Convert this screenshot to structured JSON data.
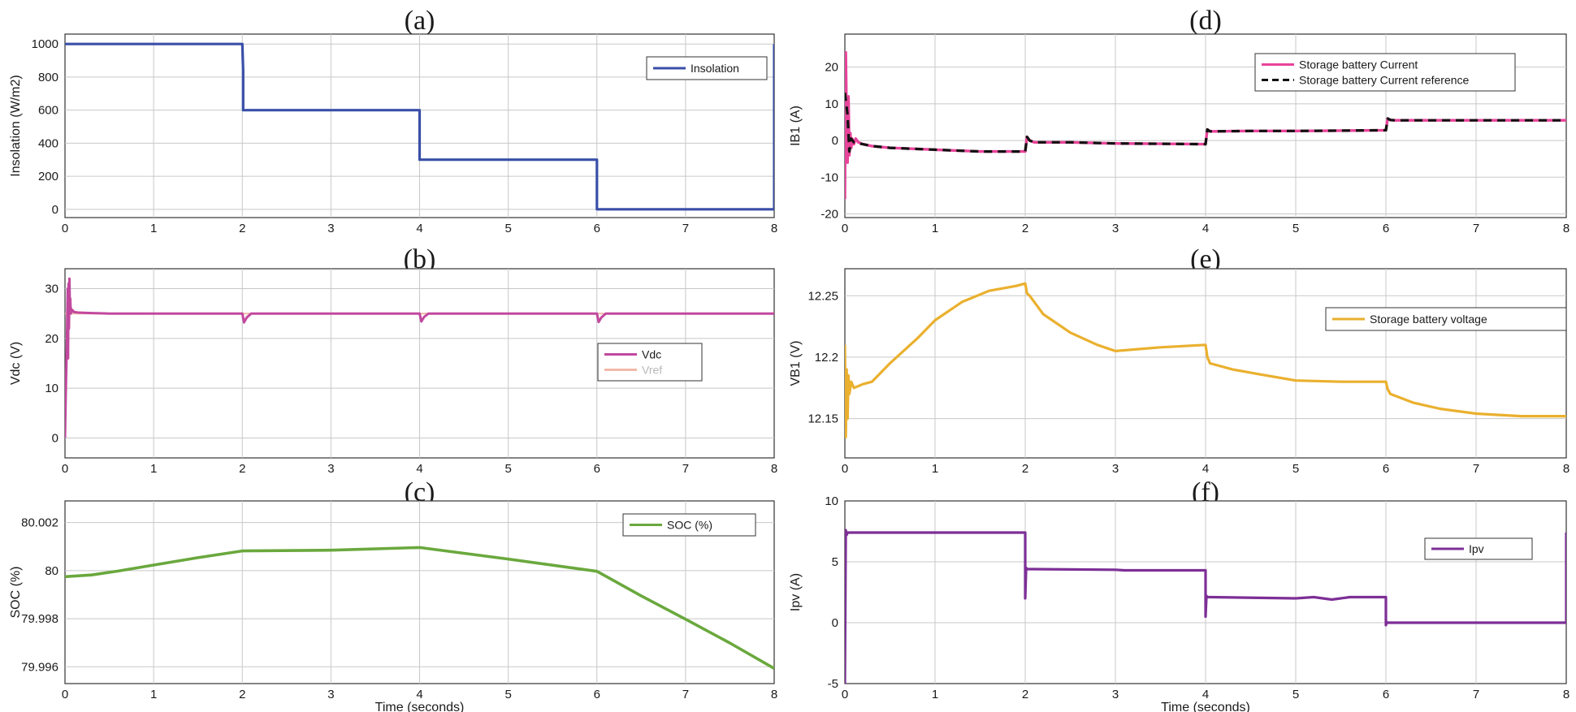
{
  "chart_data": [
    {
      "id": "a",
      "type": "line",
      "panel_label": "(a)",
      "xlabel": "",
      "ylabel": "Insolation (W/m2)",
      "xlim": [
        0,
        8
      ],
      "ylim": [
        -50,
        1060
      ],
      "xticks": [
        0,
        1,
        2,
        3,
        4,
        5,
        6,
        7,
        8
      ],
      "yticks": [
        0,
        200,
        400,
        600,
        800,
        1000
      ],
      "legend": {
        "position": "top-right"
      },
      "series": [
        {
          "name": "Insolation",
          "color": "#3a4fa8",
          "width": 3.2,
          "dash": "",
          "x": [
            0,
            2,
            2.01,
            2.01,
            4,
            4,
            6,
            6,
            8,
            8
          ],
          "y": [
            1000,
            1000,
            840,
            600,
            600,
            300,
            300,
            0,
            0,
            1000
          ]
        }
      ]
    },
    {
      "id": "b",
      "type": "line",
      "panel_label": "(b)",
      "xlabel": "",
      "ylabel": "Vdc (V)",
      "xlim": [
        0,
        8
      ],
      "ylim": [
        -4,
        34
      ],
      "xticks": [
        0,
        1,
        2,
        3,
        4,
        5,
        6,
        7,
        8
      ],
      "yticks": [
        0,
        10,
        20,
        30
      ],
      "legend": {
        "position": "lower-right"
      },
      "series": [
        {
          "name": "Vref",
          "color": "#f1b9a8",
          "width": 2,
          "dash": "",
          "x": [
            0,
            8
          ],
          "y": [
            25,
            25
          ]
        },
        {
          "name": "Vdc",
          "color": "#c2489e",
          "width": 3,
          "x": [
            0,
            0.01,
            0.02,
            0.03,
            0.035,
            0.04,
            0.045,
            0.05,
            0.055,
            0.06,
            0.065,
            0.07,
            0.08,
            0.09,
            0.1,
            0.15,
            0.3,
            0.5,
            2.0,
            2.02,
            2.05,
            2.1,
            2.2,
            4.0,
            4.02,
            4.05,
            4.1,
            4.2,
            6.0,
            6.02,
            6.05,
            6.1,
            6.2,
            8
          ],
          "y": [
            0,
            10,
            18,
            30,
            16,
            31,
            22,
            32,
            26,
            28,
            25,
            26,
            25.4,
            25.6,
            25.3,
            25.2,
            25.1,
            25,
            25,
            23.2,
            24.2,
            25,
            25,
            25,
            23.4,
            24.3,
            25,
            25,
            25,
            23.3,
            24.2,
            25,
            25,
            25
          ]
        }
      ]
    },
    {
      "id": "c",
      "type": "line",
      "panel_label": "(c)",
      "xlabel": "Time (seconds)",
      "ylabel": "SOC (%)",
      "xlim": [
        0,
        8
      ],
      "ylim": [
        79.9953,
        80.0029
      ],
      "xticks": [
        0,
        1,
        2,
        3,
        4,
        5,
        6,
        7,
        8
      ],
      "yticks": [
        79.996,
        79.998,
        80,
        80.002
      ],
      "legend": {
        "position": "top-right"
      },
      "series": [
        {
          "name": "SOC (%)",
          "color": "#6aa83d",
          "width": 3.6,
          "x": [
            0,
            0.3,
            0.6,
            1,
            1.5,
            2,
            3,
            4,
            5,
            6,
            6.5,
            7,
            7.5,
            8
          ],
          "y": [
            79.99975,
            79.99982,
            79.99998,
            80.00023,
            80.00054,
            80.00082,
            80.00085,
            80.00096,
            80.00048,
            79.99997,
            79.99895,
            79.99798,
            79.99699,
            79.99593
          ]
        }
      ]
    },
    {
      "id": "d",
      "type": "line",
      "panel_label": "(d)",
      "xlabel": "",
      "ylabel": "IB1 (A)",
      "xlim": [
        0,
        8
      ],
      "ylim": [
        -21,
        29
      ],
      "xticks": [
        0,
        1,
        2,
        3,
        4,
        5,
        6,
        7,
        8
      ],
      "yticks": [
        -20,
        -10,
        0,
        10,
        20
      ],
      "legend": {
        "position": "top-right"
      },
      "series": [
        {
          "name": "Storage battery Current",
          "color": "#e8449a",
          "width": 3.4,
          "dash": "",
          "x": [
            0,
            0.01,
            0.02,
            0.03,
            0.04,
            0.05,
            0.06,
            0.07,
            0.08,
            0.1,
            0.12,
            0.15,
            0.2,
            0.3,
            0.5,
            1.0,
            1.5,
            2.0,
            2.02,
            2.05,
            2.1,
            2.5,
            3.0,
            3.5,
            4.0,
            4.02,
            4.05,
            4.1,
            4.5,
            5.0,
            5.5,
            6.0,
            6.02,
            6.05,
            6.1,
            6.5,
            7.0,
            7.5,
            8
          ],
          "y": [
            -16,
            24,
            5,
            -6,
            12,
            -4,
            2,
            -2,
            0.5,
            -1,
            0.5,
            -0.5,
            -1,
            -1.5,
            -2,
            -2.5,
            -3,
            -3,
            1,
            0,
            -0.5,
            -0.5,
            -0.8,
            -0.9,
            -1,
            3,
            2.5,
            2.5,
            2.6,
            2.6,
            2.7,
            2.8,
            6,
            5.6,
            5.5,
            5.5,
            5.5,
            5.5,
            5.5
          ]
        },
        {
          "name": "Storage battery Current  reference",
          "color": "#111111",
          "width": 3.2,
          "dash": "10,7",
          "x": [
            0,
            0.03,
            0.05,
            0.07,
            0.1,
            0.15,
            0.2,
            0.3,
            0.5,
            1.0,
            1.5,
            2.0,
            2.02,
            2.05,
            2.1,
            2.5,
            3.0,
            3.5,
            4.0,
            4.02,
            4.05,
            4.1,
            4.5,
            5.0,
            5.5,
            6.0,
            6.02,
            6.05,
            6.1,
            6.5,
            7.0,
            7.5,
            8
          ],
          "y": [
            13,
            7,
            -3,
            0.5,
            -0.5,
            -0.8,
            -1,
            -1.5,
            -2,
            -2.5,
            -3,
            -3,
            1,
            0,
            -0.5,
            -0.5,
            -0.8,
            -0.9,
            -1,
            3,
            2.5,
            2.5,
            2.6,
            2.6,
            2.7,
            2.8,
            6,
            5.6,
            5.5,
            5.5,
            5.5,
            5.5,
            5.5
          ]
        }
      ]
    },
    {
      "id": "e",
      "type": "line",
      "panel_label": "(e)",
      "xlabel": "",
      "ylabel": "VB1 (V)",
      "xlim": [
        0,
        8
      ],
      "ylim": [
        12.118,
        12.272
      ],
      "xticks": [
        0,
        1,
        2,
        3,
        4,
        5,
        6,
        7,
        8
      ],
      "yticks": [
        12.15,
        12.2,
        12.25
      ],
      "legend": {
        "position": "top-right"
      },
      "series": [
        {
          "name": "Storage battery voltage",
          "color": "#eab02e",
          "width": 3.2,
          "x": [
            0,
            0.01,
            0.02,
            0.03,
            0.04,
            0.05,
            0.07,
            0.1,
            0.2,
            0.3,
            0.5,
            0.8,
            1.0,
            1.3,
            1.6,
            1.9,
            2.0,
            2.02,
            2.05,
            2.2,
            2.5,
            2.8,
            3.0,
            3.5,
            4.0,
            4.02,
            4.05,
            4.3,
            4.6,
            5.0,
            5.5,
            6.0,
            6.02,
            6.05,
            6.3,
            6.6,
            7.0,
            7.5,
            8
          ],
          "y": [
            12.21,
            12.135,
            12.19,
            12.15,
            12.185,
            12.17,
            12.18,
            12.175,
            12.178,
            12.18,
            12.195,
            12.215,
            12.23,
            12.245,
            12.254,
            12.258,
            12.26,
            12.252,
            12.25,
            12.235,
            12.22,
            12.21,
            12.205,
            12.208,
            12.21,
            12.2,
            12.195,
            12.19,
            12.186,
            12.181,
            12.18,
            12.18,
            12.174,
            12.17,
            12.163,
            12.158,
            12.154,
            12.152,
            12.152
          ]
        }
      ]
    },
    {
      "id": "f",
      "type": "line",
      "panel_label": "(f)",
      "xlabel": "Time (seconds)",
      "ylabel": "Ipv (A)",
      "xlim": [
        0,
        8
      ],
      "ylim": [
        -5,
        10
      ],
      "xticks": [
        0,
        1,
        2,
        3,
        4,
        5,
        6,
        7,
        8
      ],
      "yticks": [
        -5,
        0,
        5,
        10
      ],
      "legend": {
        "position": "top-right"
      },
      "series": [
        {
          "name": "Ipv",
          "color": "#7d2f96",
          "width": 3.2,
          "x": [
            0,
            0.01,
            0.02,
            0.03,
            0.05,
            1.0,
            2.0,
            2.0,
            2.01,
            2.02,
            2.05,
            3.0,
            3.1,
            4.0,
            4.0,
            4.01,
            4.02,
            4.05,
            5.0,
            5.2,
            5.4,
            5.5,
            5.6,
            6.0,
            6.0,
            6.01,
            6.02,
            6.05,
            7.0,
            8.0,
            8.0
          ],
          "y": [
            -5,
            7.6,
            7.2,
            7.4,
            7.4,
            7.4,
            7.4,
            2.0,
            4.5,
            4.4,
            4.4,
            4.35,
            4.3,
            4.3,
            0.5,
            2.2,
            2.1,
            2.1,
            2.0,
            2.1,
            1.9,
            2.0,
            2.1,
            2.1,
            -0.2,
            0.05,
            0.0,
            0.0,
            0.0,
            0.0,
            7.4
          ]
        }
      ]
    }
  ]
}
